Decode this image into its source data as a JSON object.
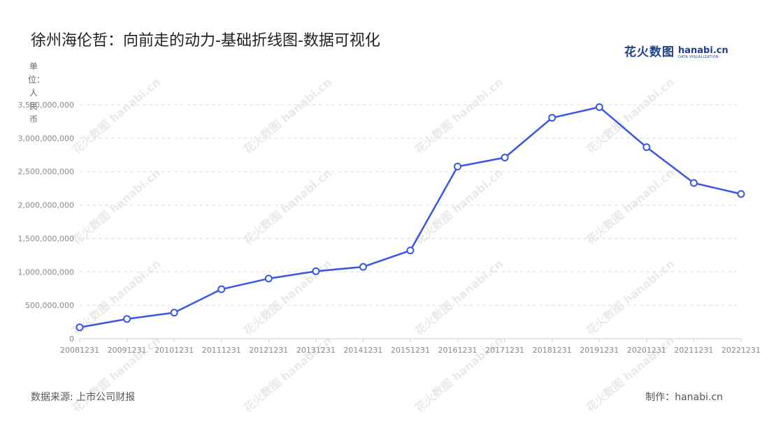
{
  "title": "徐州海伦哲：向前走的动力-基础折线图-数据可视化",
  "logo": {
    "cn": "花火数图",
    "en": "hanabi.cn",
    "en_sub": "DATA VISUALIZATION"
  },
  "unit_label": "单位：人民币",
  "footer": {
    "source": "数据来源: 上市公司财报",
    "credit": "制作：hanabi.cn"
  },
  "colors": {
    "line": "#3b55e6",
    "grid": "#dddddd",
    "axis": "#cccccc",
    "tick_text": "#888888"
  },
  "chart_data": {
    "type": "line",
    "title": "徐州海伦哲：向前走的动力-基础折线图-数据可视化",
    "xlabel": "",
    "ylabel": "单位：人民币",
    "categories": [
      "20081231",
      "20091231",
      "20101231",
      "20111231",
      "20121231",
      "20131231",
      "20141231",
      "20151231",
      "20161231",
      "20171231",
      "20181231",
      "20191231",
      "20201231",
      "20211231",
      "20221231"
    ],
    "series": [
      {
        "values": [
          170000000,
          295000000,
          390000000,
          740000000,
          900000000,
          1010000000,
          1075000000,
          1320000000,
          2575000000,
          2710000000,
          3305000000,
          3465000000,
          2865000000,
          2330000000,
          2165000000
        ]
      }
    ],
    "ylim": [
      0,
      3500000000
    ],
    "yticks": [
      0,
      500000000,
      1000000000,
      1500000000,
      2000000000,
      2500000000,
      3000000000,
      3500000000
    ],
    "ytick_labels": [
      "0",
      "500,000,000",
      "1,000,000,000",
      "1,500,000,000",
      "2,000,000,000",
      "2,500,000,000",
      "3,000,000,000",
      "3,500,000,000"
    ],
    "grid": true,
    "legend": "none"
  }
}
